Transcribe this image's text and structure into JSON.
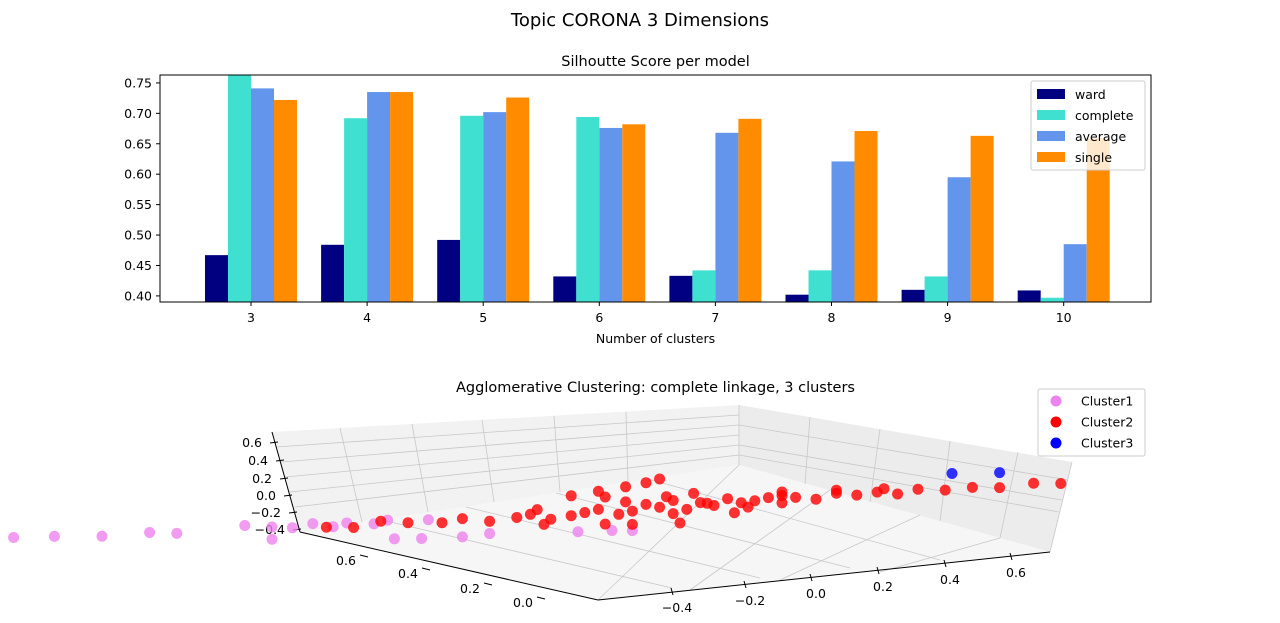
{
  "figure": {
    "suptitle": "Topic CORONA 3 Dimensions"
  },
  "chart_data": [
    {
      "type": "bar",
      "title": "Silhoutte Score per model",
      "xlabel": "Number of clusters",
      "ylabel": "",
      "categories": [
        "3",
        "4",
        "5",
        "6",
        "7",
        "8",
        "9",
        "10"
      ],
      "ylim": [
        0.39,
        0.763
      ],
      "yticks": [
        "0.40",
        "0.45",
        "0.50",
        "0.55",
        "0.60",
        "0.65",
        "0.70",
        "0.75"
      ],
      "legend_position": "top-right",
      "series": [
        {
          "name": "ward",
          "color": "#000080",
          "values": [
            0.467,
            0.484,
            0.492,
            0.432,
            0.433,
            0.402,
            0.41,
            0.409
          ]
        },
        {
          "name": "complete",
          "color": "#40e0d0",
          "values": [
            0.763,
            0.692,
            0.696,
            0.694,
            0.442,
            0.442,
            0.432,
            0.397
          ]
        },
        {
          "name": "average",
          "color": "#6495ed",
          "values": [
            0.741,
            0.735,
            0.702,
            0.676,
            0.668,
            0.621,
            0.595,
            0.485
          ]
        },
        {
          "name": "single",
          "color": "#ff8c00",
          "values": [
            0.722,
            0.735,
            0.726,
            0.682,
            0.691,
            0.671,
            0.663,
            0.659
          ]
        }
      ]
    },
    {
      "type": "scatter",
      "title": "Agglomerative Clustering: complete linkage, 3 clusters",
      "projection": "3d",
      "legend_position": "top-right",
      "x_ticks": [
        "−0.4",
        "−0.2",
        "0.0",
        "0.2",
        "0.4",
        "0.6"
      ],
      "y_ticks": [
        "0.0",
        "0.2",
        "0.4",
        "0.6"
      ],
      "z_ticks": [
        "0.6",
        "0.4",
        "0.2",
        "0.0",
        "−0.2",
        "−0.4"
      ],
      "series": [
        {
          "name": "Cluster1",
          "color": "#ee82ee",
          "points": [
            [
              -0.55,
              0.72,
              0.1
            ],
            [
              -0.5,
              0.7,
              0.05
            ],
            [
              -0.45,
              0.69,
              0.12
            ],
            [
              -0.42,
              0.68,
              0.08
            ],
            [
              -0.4,
              0.66,
              0.1
            ],
            [
              -0.36,
              0.62,
              0.06
            ],
            [
              -0.3,
              0.55,
              0.0
            ],
            [
              -0.28,
              0.5,
              0.02
            ],
            [
              -0.26,
              0.48,
              -0.02
            ],
            [
              -0.22,
              0.42,
              0.05
            ],
            [
              -0.2,
              0.4,
              0.0
            ],
            [
              -0.19,
              0.38,
              -0.03
            ],
            [
              -0.18,
              0.36,
              0.02
            ],
            [
              -0.17,
              0.34,
              -0.05
            ],
            [
              -0.16,
              0.33,
              0.0
            ],
            [
              -0.15,
              0.3,
              -0.04
            ],
            [
              -0.14,
              0.29,
              0.01
            ],
            [
              -0.25,
              0.35,
              -0.2
            ],
            [
              -0.22,
              0.2,
              -0.3
            ],
            [
              -0.2,
              0.18,
              -0.32
            ],
            [
              -0.17,
              0.15,
              -0.33
            ],
            [
              -0.15,
              0.13,
              -0.3
            ],
            [
              -0.1,
              0.05,
              -0.35
            ],
            [
              -0.08,
              0.02,
              -0.36
            ],
            [
              -0.07,
              0.0,
              -0.38
            ],
            [
              -0.32,
              0.6,
              0.04
            ],
            [
              -0.12,
              0.25,
              -0.02
            ]
          ]
        },
        {
          "name": "Cluster2",
          "color": "#ff0000",
          "points": [
            [
              -0.15,
              0.25,
              -0.05
            ],
            [
              -0.13,
              0.22,
              -0.08
            ],
            [
              -0.12,
              0.2,
              -0.03
            ],
            [
              -0.1,
              0.18,
              -0.1
            ],
            [
              -0.09,
              0.15,
              -0.06
            ],
            [
              -0.08,
              0.14,
              -0.02
            ],
            [
              -0.07,
              0.12,
              -0.12
            ],
            [
              -0.06,
              0.1,
              -0.08
            ],
            [
              -0.05,
              0.09,
              -0.04
            ],
            [
              -0.04,
              0.08,
              0.0
            ],
            [
              -0.03,
              0.06,
              -0.1
            ],
            [
              -0.02,
              0.05,
              -0.06
            ],
            [
              -0.01,
              0.04,
              0.04
            ],
            [
              0.0,
              0.03,
              -0.02
            ],
            [
              0.01,
              0.02,
              0.08
            ],
            [
              0.02,
              0.01,
              -0.08
            ],
            [
              0.03,
              0.0,
              0.02
            ],
            [
              0.04,
              -0.01,
              -0.04
            ],
            [
              0.05,
              -0.02,
              0.06
            ],
            [
              0.06,
              -0.03,
              -0.02
            ],
            [
              0.07,
              -0.04,
              0.0
            ],
            [
              0.08,
              -0.05,
              0.04
            ],
            [
              0.09,
              -0.06,
              -0.06
            ],
            [
              0.1,
              -0.07,
              0.02
            ],
            [
              0.12,
              -0.08,
              -0.03
            ],
            [
              0.14,
              -0.09,
              0.05
            ],
            [
              0.16,
              -0.1,
              0.0
            ],
            [
              0.18,
              -0.11,
              0.03
            ],
            [
              0.2,
              -0.12,
              -0.02
            ],
            [
              0.22,
              -0.13,
              0.04
            ],
            [
              0.25,
              -0.14,
              0.0
            ],
            [
              0.28,
              -0.15,
              0.02
            ],
            [
              0.31,
              -0.16,
              -0.01
            ],
            [
              0.35,
              -0.17,
              0.03
            ],
            [
              0.38,
              -0.18,
              0.0
            ],
            [
              -0.04,
              0.12,
              0.25
            ],
            [
              -0.02,
              0.1,
              0.3
            ],
            [
              0.0,
              0.08,
              0.35
            ],
            [
              0.01,
              0.06,
              0.4
            ],
            [
              0.02,
              0.05,
              0.45
            ],
            [
              -0.03,
              0.08,
              0.2
            ],
            [
              0.0,
              0.02,
              0.15
            ],
            [
              0.02,
              0.0,
              0.18
            ],
            [
              -0.05,
              0.06,
              -0.25
            ],
            [
              -0.03,
              0.04,
              -0.28
            ],
            [
              0.0,
              0.0,
              -0.3
            ],
            [
              -0.08,
              0.12,
              -0.2
            ],
            [
              0.05,
              -0.03,
              -0.18
            ],
            [
              0.1,
              -0.05,
              0.12
            ],
            [
              0.15,
              -0.08,
              0.1
            ],
            [
              0.2,
              -0.1,
              0.08
            ],
            [
              -0.18,
              0.3,
              -0.08
            ],
            [
              -0.2,
              0.32,
              -0.05
            ],
            [
              -0.16,
              0.28,
              0.0
            ],
            [
              0.06,
              0.02,
              0.0
            ],
            [
              0.03,
              0.04,
              -0.14
            ],
            [
              -0.01,
              0.07,
              0.1
            ],
            [
              0.08,
              -0.02,
              -0.1
            ],
            [
              0.11,
              -0.04,
              0.06
            ],
            [
              -0.06,
              0.15,
              0.05
            ]
          ]
        },
        {
          "name": "Cluster3",
          "color": "#0000ff",
          "points": [
            [
              0.5,
              0.1,
              0.25
            ],
            [
              0.55,
              0.08,
              0.22
            ]
          ]
        }
      ]
    }
  ]
}
